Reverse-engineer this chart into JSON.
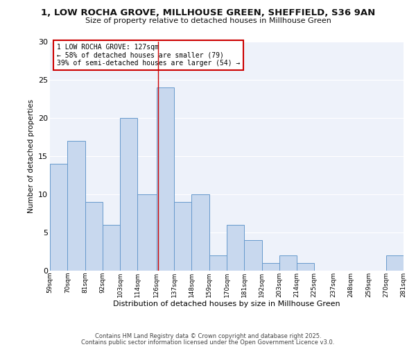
{
  "title": "1, LOW ROCHA GROVE, MILLHOUSE GREEN, SHEFFIELD, S36 9AN",
  "subtitle": "Size of property relative to detached houses in Millhouse Green",
  "xlabel": "Distribution of detached houses by size in Millhouse Green",
  "ylabel": "Number of detached properties",
  "bar_color": "#c8d8ee",
  "bar_edge_color": "#6699cc",
  "background_color": "#ffffff",
  "plot_bg_color": "#eef2fa",
  "grid_color": "#ffffff",
  "bins": [
    59,
    70,
    81,
    92,
    103,
    114,
    126,
    137,
    148,
    159,
    170,
    181,
    192,
    203,
    214,
    225,
    237,
    248,
    259,
    270,
    281
  ],
  "bin_labels": [
    "59sqm",
    "70sqm",
    "81sqm",
    "92sqm",
    "103sqm",
    "114sqm",
    "126sqm",
    "137sqm",
    "148sqm",
    "159sqm",
    "170sqm",
    "181sqm",
    "192sqm",
    "203sqm",
    "214sqm",
    "225sqm",
    "237sqm",
    "248sqm",
    "259sqm",
    "270sqm",
    "281sqm"
  ],
  "counts": [
    14,
    17,
    9,
    6,
    20,
    10,
    24,
    9,
    10,
    2,
    6,
    4,
    1,
    2,
    1,
    0,
    0,
    0,
    0,
    2
  ],
  "ylim": [
    0,
    30
  ],
  "yticks": [
    0,
    5,
    10,
    15,
    20,
    25,
    30
  ],
  "property_sqm": 127,
  "property_line_color": "#cc0000",
  "annotation_title": "1 LOW ROCHA GROVE: 127sqm",
  "annotation_line1": "← 58% of detached houses are smaller (79)",
  "annotation_line2": "39% of semi-detached houses are larger (54) →",
  "annotation_box_color": "#cc0000",
  "footnote1": "Contains HM Land Registry data © Crown copyright and database right 2025.",
  "footnote2": "Contains public sector information licensed under the Open Government Licence v3.0."
}
